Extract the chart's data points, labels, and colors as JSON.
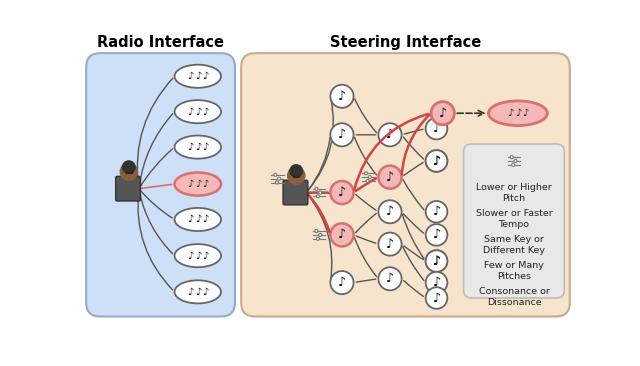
{
  "title_left": "Radio Interface",
  "title_right": "Steering Interface",
  "bg_left": "#cde0f7",
  "bg_right": "#f7e4cc",
  "legend_bg": "#e8e8e8",
  "legend_items": [
    "Lower or Higher\nPitch",
    "Slower or Faster\nTempo",
    "Same Key or\nDifferent Key",
    "Few or Many\nPitches",
    "Consonance or\nDissonance"
  ],
  "note_symbol": "♪",
  "pink_fill": "#f5b8b8",
  "pink_edge": "#d97070",
  "white_fill": "#ffffff",
  "dark_edge": "#666666",
  "red_line": "#d44444",
  "person_skin": "#8B5E3C",
  "person_hair": "#333333",
  "person_body": "#555555"
}
